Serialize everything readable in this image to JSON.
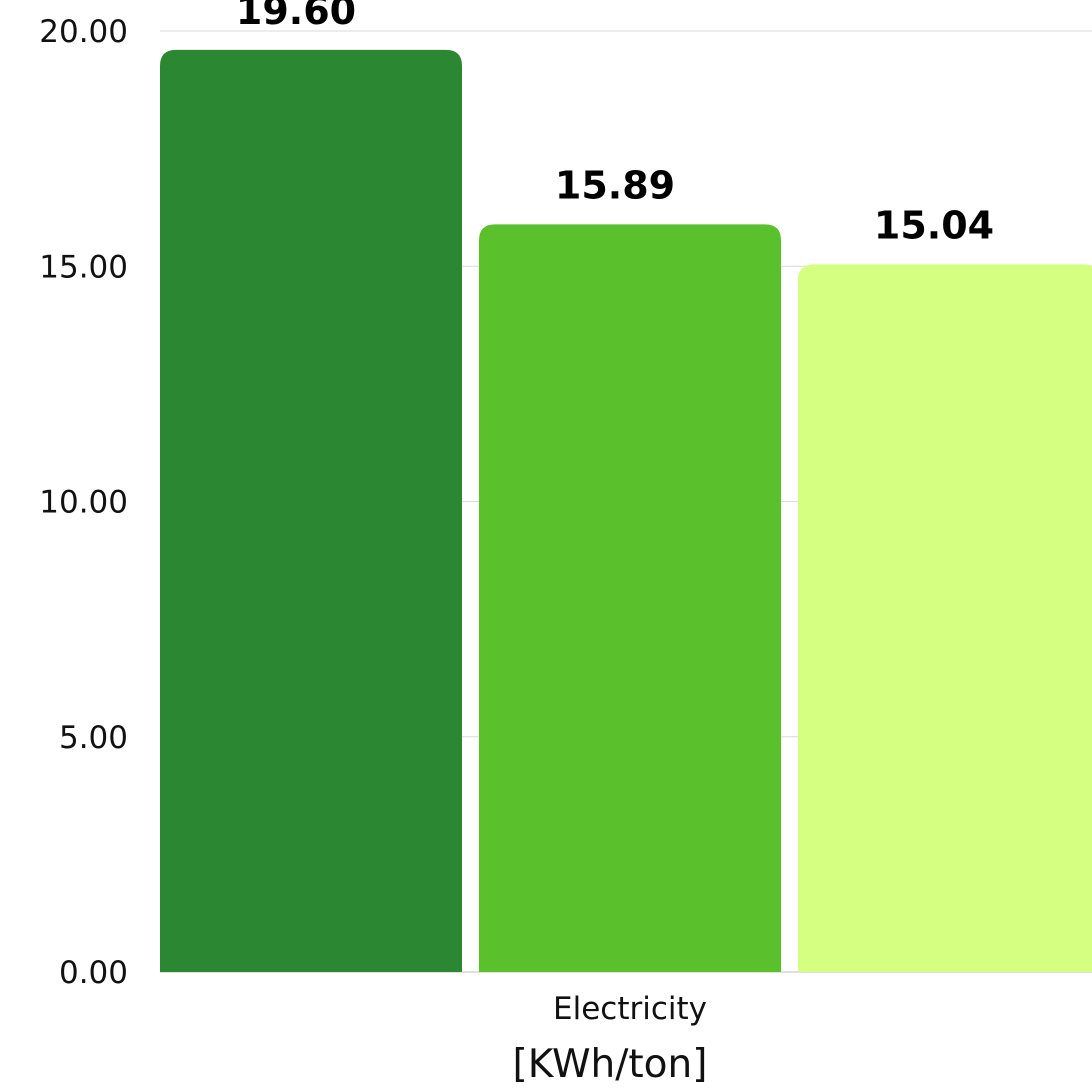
{
  "chart_data": {
    "type": "bar",
    "title": "",
    "xlabel": "",
    "ylabel": "",
    "categories": [
      "Electricity"
    ],
    "category_unit": "[KWh/ton]",
    "ylim": [
      0,
      20
    ],
    "yticks": [
      "0.00",
      "5.00",
      "10.00",
      "15.00",
      "20.00"
    ],
    "grid": true,
    "legend": "none",
    "series": [
      {
        "values": [
          19.6
        ],
        "label": "19.60",
        "color": "#2b8731"
      },
      {
        "values": [
          15.89
        ],
        "label": "15.89",
        "color": "#5ac12d"
      },
      {
        "values": [
          15.04
        ],
        "label": "15.04",
        "color": "#d4ff80"
      }
    ]
  }
}
